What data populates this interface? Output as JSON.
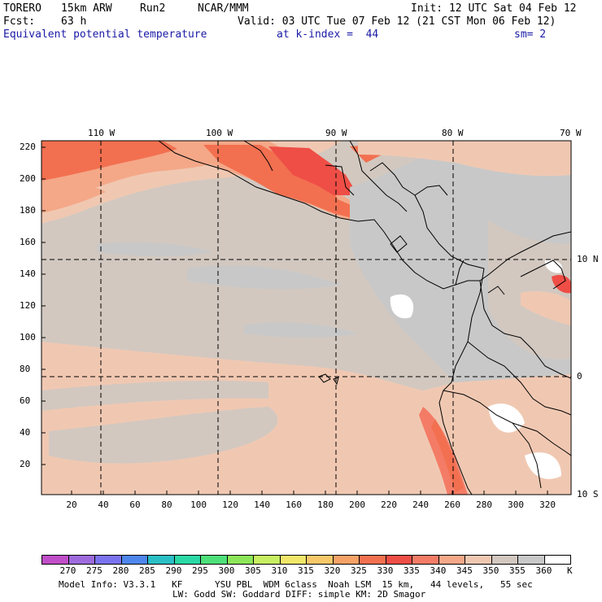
{
  "header": {
    "model": "TORERO",
    "res": "15km ARW",
    "run": "Run2",
    "org": "NCAR/MMM",
    "init": "Init: 12 UTC Sat 04 Feb 12",
    "fcst_label": "Fcst:",
    "fcst_value": "63 h",
    "valid": "Valid: 03 UTC Tue 07 Feb 12 (21 CST Mon 06 Feb 12)",
    "field": "Equivalent potential temperature",
    "level": "at k-index =  44",
    "smooth": "sm= 2"
  },
  "map": {
    "lon_labels": [
      "110 W",
      "100 W",
      "90 W",
      "80 W",
      "70 W"
    ],
    "lat_labels": [
      "10 N",
      "0",
      "10 S"
    ],
    "y_ticks": [
      "220",
      "200",
      "180",
      "160",
      "140",
      "120",
      "100",
      "80",
      "60",
      "40",
      "20"
    ],
    "x_ticks": [
      "20",
      "40",
      "60",
      "80",
      "100",
      "120",
      "140",
      "160",
      "180",
      "200",
      "220",
      "240",
      "260",
      "280",
      "300",
      "320"
    ]
  },
  "colorbar": {
    "labels": [
      "270",
      "275",
      "280",
      "285",
      "290",
      "295",
      "300",
      "305",
      "310",
      "315",
      "320",
      "325",
      "330",
      "335",
      "340",
      "345",
      "350",
      "355",
      "360"
    ],
    "unit": "K",
    "colors": [
      "#c04ec8",
      "#9e6bdc",
      "#7b73ee",
      "#4e86ec",
      "#2abfc4",
      "#2bd8a6",
      "#4ee07a",
      "#8ce65a",
      "#c8ee62",
      "#f2e66a",
      "#f6c86a",
      "#f6a266",
      "#f27050",
      "#ee4e46",
      "#f47c66",
      "#f4a888",
      "#f0c8b2",
      "#d2c8c0",
      "#c8c8c8",
      "#ffffff"
    ]
  },
  "footer": {
    "line1": "Model Info: V3.3.1   KF      YSU PBL  WDM 6class  Noah LSM  15 km,   44 levels,   55 sec",
    "line2": "LW: Godd SW: Goddard DIFF: simple KM: 2D Smagor"
  }
}
